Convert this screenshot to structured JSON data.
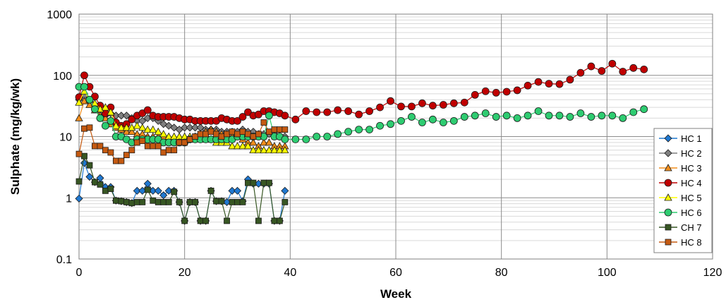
{
  "chart_data": {
    "type": "line",
    "title": "",
    "xlabel": "Week",
    "ylabel": "Sulphate (mg/kg/wk)",
    "xlim": [
      0,
      120
    ],
    "ylim": [
      0.1,
      1000
    ],
    "y_scale": "log",
    "x_ticks": [
      "0",
      "20",
      "40",
      "60",
      "80",
      "100",
      "120"
    ],
    "y_ticks": [
      "0.1",
      "1",
      "10",
      "100",
      "1000"
    ],
    "grid": "major and minor horizontal, major vertical",
    "legend_position": "right",
    "series": [
      {
        "name": "HC 1",
        "color": "#1f78d1",
        "marker": "diamond",
        "x": [
          0,
          1,
          2,
          3,
          4,
          5,
          6,
          7,
          8,
          9,
          10,
          11,
          12,
          13,
          14,
          15,
          16,
          17,
          18,
          19,
          20,
          21,
          22,
          23,
          24,
          25,
          26,
          27,
          28,
          29,
          30,
          31,
          32,
          33,
          34,
          35,
          36,
          37,
          38,
          39
        ],
        "y": [
          0.97,
          3.7,
          2.2,
          1.8,
          2.1,
          1.5,
          1.5,
          0.9,
          0.88,
          0.85,
          0.82,
          1.3,
          1.3,
          1.7,
          1.3,
          1.3,
          1.1,
          1.3,
          1.3,
          0.85,
          0.42,
          0.85,
          0.85,
          0.42,
          0.42,
          1.3,
          0.88,
          0.88,
          0.85,
          1.3,
          1.3,
          0.88,
          2.0,
          1.7,
          1.7,
          1.7,
          1.7,
          0.42,
          0.42,
          1.3
        ]
      },
      {
        "name": "HC 2",
        "color": "#7f7f7f",
        "marker": "diamond",
        "x": [
          0,
          1,
          2,
          3,
          4,
          5,
          6,
          7,
          8,
          9,
          10,
          11,
          12,
          13,
          14,
          15,
          16,
          17,
          18,
          19,
          20,
          21,
          22,
          23,
          24,
          25,
          26,
          27,
          28,
          29,
          30,
          31,
          32,
          33,
          34,
          35,
          36,
          37,
          38,
          39
        ],
        "y": [
          40,
          46,
          38,
          30,
          25,
          22,
          24,
          22,
          22,
          22,
          20,
          18,
          18,
          20,
          20,
          18,
          16,
          15,
          14,
          13,
          14,
          14,
          14,
          14,
          13,
          13,
          13,
          12,
          12,
          12,
          12,
          13,
          12,
          12,
          11,
          11,
          11,
          11,
          10,
          10
        ]
      },
      {
        "name": "HC 3",
        "color": "#f28e1c",
        "marker": "triangle",
        "x": [
          0,
          1,
          2,
          3,
          4,
          5,
          6,
          7,
          8,
          9,
          10,
          11,
          12,
          13,
          14,
          15,
          16,
          17,
          18,
          19,
          20,
          21,
          22,
          23,
          24,
          25,
          26,
          27,
          28,
          29,
          30,
          31,
          32,
          33,
          34,
          35,
          36,
          37,
          38,
          39
        ],
        "y": [
          20,
          38,
          33,
          27,
          22,
          20,
          16,
          14,
          13,
          12,
          12,
          11,
          11,
          10,
          10,
          10,
          10,
          9,
          9,
          9,
          9,
          9,
          10,
          11,
          12,
          13,
          12,
          11,
          11,
          10,
          10,
          9,
          8,
          8,
          7,
          8,
          8,
          7,
          7,
          7
        ]
      },
      {
        "name": "HC 4",
        "color": "#c00000",
        "marker": "circle",
        "x": [
          0,
          1,
          2,
          3,
          4,
          5,
          6,
          7,
          8,
          9,
          10,
          11,
          12,
          13,
          14,
          15,
          16,
          17,
          18,
          19,
          20,
          21,
          22,
          23,
          24,
          25,
          26,
          27,
          28,
          29,
          30,
          31,
          32,
          33,
          34,
          35,
          36,
          37,
          38,
          39,
          41,
          43,
          45,
          47,
          49,
          51,
          53,
          55,
          57,
          59,
          61,
          63,
          65,
          67,
          69,
          71,
          73,
          75,
          77,
          79,
          81,
          83,
          85,
          87,
          89,
          91,
          93,
          95,
          97,
          99,
          101,
          103,
          105,
          107
        ],
        "y": [
          44,
          100,
          65,
          45,
          32,
          24,
          30,
          17,
          15,
          16,
          19,
          22,
          24,
          27,
          22,
          21,
          21,
          21,
          21,
          20,
          19,
          19,
          18,
          18,
          18,
          18,
          18,
          20,
          19,
          18,
          18,
          21,
          25,
          22,
          23,
          26,
          26,
          25,
          24,
          22,
          19,
          26,
          25,
          25,
          27,
          26,
          23,
          26,
          30,
          38,
          31,
          31,
          35,
          32,
          33,
          35,
          36,
          48,
          55,
          52,
          54,
          57,
          68,
          78,
          73,
          72,
          85,
          110,
          140,
          118,
          155,
          115,
          132,
          125
        ]
      },
      {
        "name": "HC 5",
        "color": "#ffff00",
        "marker": "triangle",
        "x": [
          0,
          1,
          2,
          3,
          4,
          5,
          6,
          7,
          8,
          9,
          10,
          11,
          12,
          13,
          14,
          15,
          16,
          17,
          18,
          19,
          20,
          21,
          22,
          23,
          24,
          25,
          26,
          27,
          28,
          29,
          30,
          31,
          32,
          33,
          34,
          35,
          36,
          37,
          38,
          39
        ],
        "y": [
          36,
          55,
          40,
          35,
          28,
          30,
          25,
          15,
          14,
          14,
          14,
          15,
          14,
          13,
          13,
          12,
          11,
          10,
          10,
          10,
          10,
          10,
          10,
          10,
          9,
          9,
          8,
          8,
          8,
          7,
          7,
          7,
          7,
          6,
          6,
          6,
          6,
          6,
          6,
          6
        ]
      },
      {
        "name": "HC 6",
        "color": "#2ecc71",
        "marker": "circle",
        "x": [
          0,
          1,
          2,
          3,
          4,
          5,
          6,
          7,
          8,
          9,
          10,
          11,
          12,
          13,
          14,
          15,
          16,
          17,
          18,
          19,
          20,
          21,
          22,
          23,
          24,
          25,
          26,
          27,
          28,
          29,
          30,
          31,
          32,
          33,
          34,
          35,
          36,
          37,
          38,
          39,
          41,
          43,
          45,
          47,
          49,
          51,
          53,
          55,
          57,
          59,
          61,
          63,
          65,
          67,
          69,
          71,
          73,
          75,
          77,
          79,
          81,
          83,
          85,
          87,
          89,
          91,
          93,
          95,
          97,
          99,
          101,
          103,
          105,
          107
        ],
        "y": [
          65,
          65,
          40,
          28,
          20,
          15,
          18,
          10,
          10,
          9,
          8,
          9,
          9,
          9,
          9,
          9,
          8,
          8,
          8,
          8,
          8,
          9,
          9,
          9,
          9,
          9,
          9,
          9,
          9,
          9,
          10,
          10,
          10,
          10,
          10,
          10,
          22,
          10,
          10,
          9,
          9,
          9,
          10,
          10,
          11,
          12,
          13,
          13,
          15,
          16,
          18,
          21,
          17,
          19,
          17,
          18,
          21,
          22,
          24,
          21,
          22,
          20,
          22,
          26,
          22,
          22,
          21,
          24,
          21,
          22,
          22,
          20,
          25,
          28
        ]
      },
      {
        "name": "CH 7",
        "color": "#375623",
        "marker": "square",
        "x": [
          0,
          1,
          2,
          3,
          4,
          5,
          6,
          7,
          8,
          9,
          10,
          11,
          12,
          13,
          14,
          15,
          16,
          17,
          18,
          19,
          20,
          21,
          22,
          23,
          24,
          25,
          26,
          27,
          28,
          29,
          30,
          31,
          32,
          33,
          34,
          35,
          36,
          37,
          38,
          39
        ],
        "y": [
          1.85,
          4.8,
          3.4,
          1.8,
          1.65,
          1.3,
          1.4,
          0.9,
          0.88,
          0.85,
          0.82,
          0.85,
          0.85,
          1.35,
          0.9,
          0.85,
          0.85,
          0.85,
          1.25,
          0.85,
          0.42,
          0.85,
          0.85,
          0.42,
          0.42,
          1.3,
          0.88,
          0.88,
          0.42,
          0.85,
          0.85,
          0.85,
          1.75,
          1.75,
          0.42,
          1.75,
          1.75,
          0.42,
          0.42,
          0.85
        ]
      },
      {
        "name": "HC 8",
        "color": "#c55a11",
        "marker": "square",
        "x": [
          0,
          1,
          2,
          3,
          4,
          5,
          6,
          7,
          8,
          9,
          10,
          11,
          12,
          13,
          14,
          15,
          16,
          17,
          18,
          19,
          20,
          21,
          22,
          23,
          24,
          25,
          26,
          27,
          28,
          29,
          30,
          31,
          32,
          33,
          34,
          35,
          36,
          37,
          38,
          39
        ],
        "y": [
          5.2,
          13.5,
          14,
          7,
          7,
          6,
          5.5,
          4,
          4,
          5,
          6,
          8,
          8.5,
          7,
          7,
          7,
          5.5,
          6,
          6,
          8,
          8,
          9,
          10,
          11,
          11,
          12,
          11,
          10,
          11,
          12,
          11,
          12,
          11,
          10,
          11,
          17,
          12,
          13,
          13,
          13
        ]
      }
    ]
  }
}
